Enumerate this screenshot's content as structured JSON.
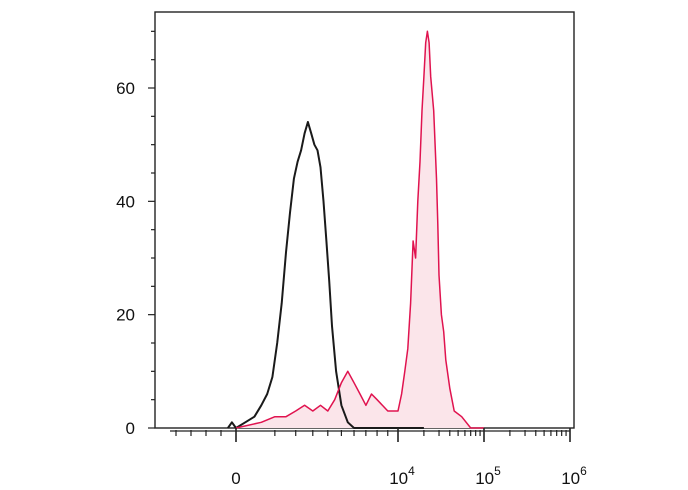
{
  "chart_data": {
    "type": "area",
    "title": "",
    "xlabel": "",
    "ylabel": "",
    "x_scale": "biexponential",
    "x_ticks": [
      {
        "id": "zero",
        "value": 0,
        "base": "0",
        "exp": ""
      },
      {
        "id": "1e4",
        "value": 10000,
        "base": "10",
        "exp": "4"
      },
      {
        "id": "1e5",
        "value": 100000,
        "base": "10",
        "exp": "5"
      },
      {
        "id": "1e6",
        "value": 1000000,
        "base": "10",
        "exp": "6"
      }
    ],
    "y_ticks": [
      {
        "value": 0,
        "label": "0"
      },
      {
        "value": 20,
        "label": "20"
      },
      {
        "value": 40,
        "label": "40"
      },
      {
        "value": 60,
        "label": "60"
      }
    ],
    "ylim": [
      0,
      72
    ],
    "grid": false,
    "legend": "none",
    "series": [
      {
        "id": "black",
        "color": "#1a1a1a",
        "fill": "none",
        "points": [
          [
            -300,
            0
          ],
          [
            -150,
            1
          ],
          [
            0,
            0
          ],
          [
            100,
            1
          ],
          [
            300,
            2
          ],
          [
            500,
            4
          ],
          [
            700,
            6
          ],
          [
            900,
            9
          ],
          [
            1100,
            15
          ],
          [
            1300,
            22
          ],
          [
            1500,
            31
          ],
          [
            1700,
            38
          ],
          [
            1900,
            44
          ],
          [
            2100,
            47
          ],
          [
            2300,
            49
          ],
          [
            2500,
            52
          ],
          [
            2700,
            54
          ],
          [
            2900,
            52
          ],
          [
            3100,
            50
          ],
          [
            3300,
            49
          ],
          [
            3500,
            46
          ],
          [
            3700,
            40
          ],
          [
            3900,
            33
          ],
          [
            4100,
            26
          ],
          [
            4300,
            18
          ],
          [
            4600,
            10
          ],
          [
            5000,
            4
          ],
          [
            5500,
            1
          ],
          [
            6000,
            0
          ],
          [
            20000,
            0
          ]
        ]
      },
      {
        "id": "red",
        "color": "#e0134f",
        "fill": "#fbe5ea",
        "points": [
          [
            0,
            0
          ],
          [
            500,
            1
          ],
          [
            1000,
            2
          ],
          [
            1500,
            2
          ],
          [
            2000,
            3
          ],
          [
            2500,
            4
          ],
          [
            3000,
            3
          ],
          [
            3500,
            4
          ],
          [
            4000,
            3
          ],
          [
            4500,
            5
          ],
          [
            5000,
            8
          ],
          [
            5500,
            10
          ],
          [
            6000,
            8
          ],
          [
            6500,
            6
          ],
          [
            7000,
            4
          ],
          [
            7500,
            6
          ],
          [
            8000,
            5
          ],
          [
            9000,
            3
          ],
          [
            10000,
            3
          ],
          [
            11000,
            6
          ],
          [
            12000,
            10
          ],
          [
            13000,
            14
          ],
          [
            14000,
            22
          ],
          [
            15000,
            33
          ],
          [
            16000,
            30
          ],
          [
            17000,
            40
          ],
          [
            18000,
            47
          ],
          [
            19000,
            56
          ],
          [
            20000,
            62
          ],
          [
            21000,
            68
          ],
          [
            22000,
            70
          ],
          [
            23000,
            68
          ],
          [
            24000,
            62
          ],
          [
            25000,
            59
          ],
          [
            26000,
            56
          ],
          [
            27000,
            50
          ],
          [
            28000,
            44
          ],
          [
            29000,
            36
          ],
          [
            30000,
            27
          ],
          [
            32000,
            20
          ],
          [
            34000,
            17
          ],
          [
            36000,
            12
          ],
          [
            40000,
            7
          ],
          [
            45000,
            3
          ],
          [
            55000,
            2
          ],
          [
            70000,
            0
          ],
          [
            100000,
            0
          ]
        ]
      }
    ]
  }
}
